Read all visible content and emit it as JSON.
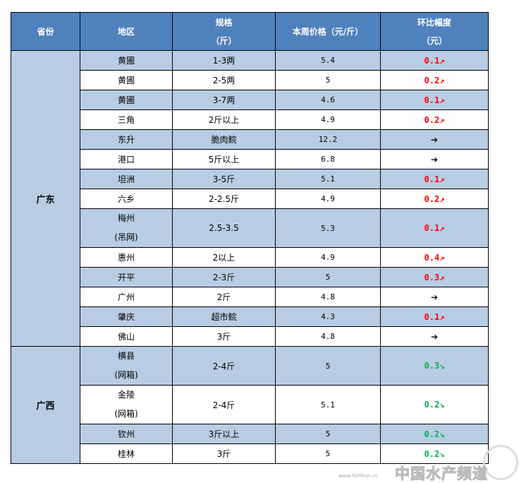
{
  "header": {
    "province": "省份",
    "region": "地区",
    "spec_line1": "规格",
    "spec_line2": "（斤）",
    "price": "本周价格（元/斤）",
    "change_line1": "环比幅度",
    "change_line2": "（元）"
  },
  "colors": {
    "header_bg": "#4f81bd",
    "row_blue": "#b8cce4",
    "up": "#ff0000",
    "down": "#00b050"
  },
  "groups": [
    {
      "province": "广东",
      "rows": [
        {
          "region": "黄圃",
          "spec": "1-3两",
          "price": "5.4",
          "change": "0.1↗",
          "trend": "up"
        },
        {
          "region": "黄圃",
          "spec": "2-5两",
          "price": "5",
          "change": "0.2↗",
          "trend": "up"
        },
        {
          "region": "黄圃",
          "spec": "3-7两",
          "price": "4.6",
          "change": "0.1↗",
          "trend": "up"
        },
        {
          "region": "三角",
          "spec": "2斤以上",
          "price": "4.9",
          "change": "0.2↗",
          "trend": "up"
        },
        {
          "region": "东升",
          "spec": "脆肉鲩",
          "price": "12.2",
          "change": "➔",
          "trend": "flat"
        },
        {
          "region": "港口",
          "spec": "5斤以上",
          "price": "6.8",
          "change": "➔",
          "trend": "flat"
        },
        {
          "region": "坦洲",
          "spec": "3-5斤",
          "price": "5.1",
          "change": "0.1↗",
          "trend": "up"
        },
        {
          "region": "六乡",
          "spec": "2-2.5斤",
          "price": "4.9",
          "change": "0.2↗",
          "trend": "up"
        },
        {
          "region": "梅州",
          "region2": "(吊网)",
          "spec": "2.5-3.5",
          "price": "5.3",
          "change": "0.1↗",
          "trend": "up"
        },
        {
          "region": "惠州",
          "spec": "2以上",
          "price": "4.9",
          "change": "0.4↗",
          "trend": "up"
        },
        {
          "region": "开平",
          "spec": "2-3斤",
          "price": "5",
          "change": "0.3↗",
          "trend": "up"
        },
        {
          "region": "广州",
          "spec": "2斤",
          "price": "4.8",
          "change": "➔",
          "trend": "flat"
        },
        {
          "region": "肇庆",
          "spec": "超市鲩",
          "price": "4.3",
          "change": "0.1↗",
          "trend": "up"
        },
        {
          "region": "佛山",
          "spec": "3斤",
          "price": "4.8",
          "change": "➔",
          "trend": "flat"
        }
      ]
    },
    {
      "province": "广西",
      "rows": [
        {
          "region": "横县",
          "region2": "(网箱)",
          "spec": "2-4斤",
          "price": "5",
          "change": "0.3↘",
          "trend": "down"
        },
        {
          "region": "金陵",
          "region2": "(网箱)",
          "spec": "2-4斤",
          "price": "5.1",
          "change": "0.2↘",
          "trend": "down"
        },
        {
          "region": "钦州",
          "spec": "3斤以上",
          "price": "5",
          "change": "0.2↘",
          "trend": "down"
        },
        {
          "region": "桂林",
          "spec": "3斤",
          "price": "5",
          "change": "0.2↘",
          "trend": "down"
        }
      ]
    }
  ],
  "watermark": {
    "text": "中国水产频道",
    "url": "www.fishfirst.cn"
  }
}
